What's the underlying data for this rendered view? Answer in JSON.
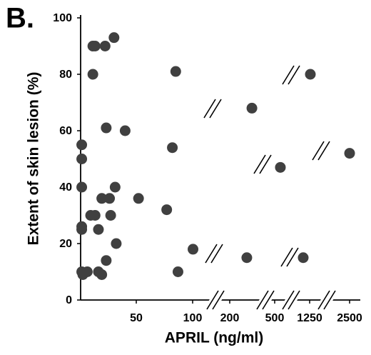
{
  "chart_data": {
    "type": "scatter",
    "panel_label": "B.",
    "x_label": "APRIL (ng/ml)",
    "y_label": "Extent of skin lesion (%)",
    "color": "#404040",
    "xlim": [
      0,
      2500
    ],
    "ylim": [
      0,
      100
    ],
    "xticks": [
      50,
      100,
      200,
      500,
      1250,
      2500
    ],
    "yticks": [
      0,
      20,
      40,
      60,
      80,
      100
    ],
    "x": [
      1,
      1,
      1,
      1,
      1,
      1,
      2,
      6,
      11,
      13,
      11,
      9,
      13,
      16,
      16,
      19,
      19,
      22,
      23,
      26,
      27,
      23,
      30,
      31,
      32,
      40,
      52,
      77,
      82,
      85,
      87,
      101,
      314,
      348,
      622,
      1112,
      1272,
      2500
    ],
    "values": [
      55,
      50,
      40,
      26,
      25,
      10,
      9,
      10,
      90,
      90,
      80,
      30,
      30,
      25,
      10,
      9,
      36,
      90,
      61,
      36,
      30,
      14,
      93,
      40,
      20,
      60,
      36,
      32,
      54,
      81,
      10,
      18,
      15,
      68,
      47,
      15,
      80,
      52
    ]
  }
}
